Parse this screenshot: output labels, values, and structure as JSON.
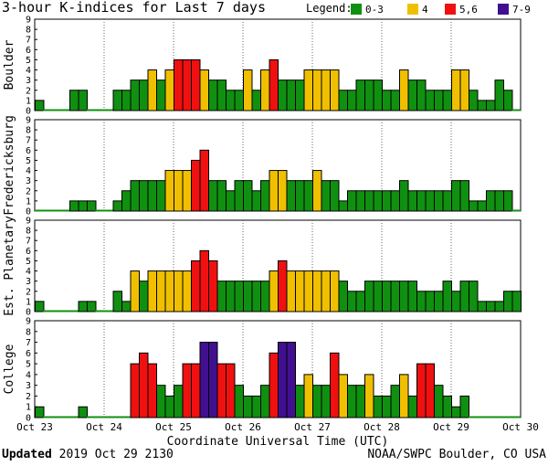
{
  "title": "3-hour K-indices for Last 7 days",
  "legend": {
    "label": "Legend:",
    "items": [
      {
        "label": "0-3",
        "color": "#109010"
      },
      {
        "label": "4",
        "color": "#f0c000"
      },
      {
        "label": "5,6",
        "color": "#f01010"
      },
      {
        "label": "7-9",
        "color": "#401090"
      }
    ]
  },
  "footer": {
    "updated_label": "Updated",
    "updated_value": "2019 Oct 29 2130",
    "credit": "NOAA/SWPC Boulder, CO USA"
  },
  "chart_data": {
    "type": "bar",
    "xlabel": "Coordinate Universal Time (UTC)",
    "x_ticks": [
      "Oct 23",
      "Oct 24",
      "Oct 25",
      "Oct 26",
      "Oct 27",
      "Oct 28",
      "Oct 29",
      "Oct 30"
    ],
    "ylim": [
      0,
      9
    ],
    "y_ticks": [
      "0",
      "1",
      "2",
      "3",
      "4",
      "5",
      "6",
      "7",
      "8",
      "9"
    ],
    "bins_per_day": 8,
    "panels": [
      {
        "name": "Boulder",
        "values": [
          1,
          0,
          0,
          0,
          2,
          2,
          0,
          0,
          0,
          2,
          2,
          3,
          3,
          4,
          3,
          4,
          5,
          5,
          5,
          4,
          3,
          3,
          2,
          2,
          4,
          2,
          4,
          5,
          3,
          3,
          3,
          4,
          4,
          4,
          4,
          2,
          2,
          3,
          3,
          3,
          2,
          2,
          4,
          3,
          3,
          2,
          2,
          2,
          4,
          4,
          2,
          1,
          1,
          3,
          2,
          0
        ]
      },
      {
        "name": "Fredericksburg",
        "values": [
          0,
          0,
          0,
          0,
          1,
          1,
          1,
          0,
          0,
          1,
          2,
          3,
          3,
          3,
          3,
          4,
          4,
          4,
          5,
          6,
          3,
          3,
          2,
          3,
          3,
          2,
          3,
          4,
          4,
          3,
          3,
          3,
          4,
          3,
          3,
          1,
          2,
          2,
          2,
          2,
          2,
          2,
          3,
          2,
          2,
          2,
          2,
          2,
          3,
          3,
          1,
          1,
          2,
          2,
          2,
          0
        ]
      },
      {
        "name": "Est. Planetary",
        "values": [
          1,
          0,
          0,
          0,
          0,
          1,
          1,
          0,
          0,
          2,
          1,
          4,
          3,
          4,
          4,
          4,
          4,
          4,
          5,
          6,
          5,
          3,
          3,
          3,
          3,
          3,
          3,
          4,
          5,
          4,
          4,
          4,
          4,
          4,
          4,
          3,
          2,
          2,
          3,
          3,
          3,
          3,
          3,
          3,
          2,
          2,
          2,
          3,
          2,
          3,
          3,
          1,
          1,
          1,
          2,
          2
        ]
      },
      {
        "name": "College",
        "values": [
          1,
          0,
          0,
          0,
          0,
          1,
          0,
          0,
          0,
          0,
          0,
          5,
          6,
          5,
          3,
          2,
          3,
          5,
          5,
          7,
          7,
          5,
          5,
          3,
          2,
          2,
          3,
          6,
          7,
          7,
          3,
          4,
          3,
          3,
          6,
          4,
          3,
          3,
          4,
          2,
          2,
          3,
          4,
          2,
          5,
          5,
          3,
          2,
          1,
          2,
          0,
          0,
          0,
          0,
          0,
          0
        ]
      }
    ]
  }
}
